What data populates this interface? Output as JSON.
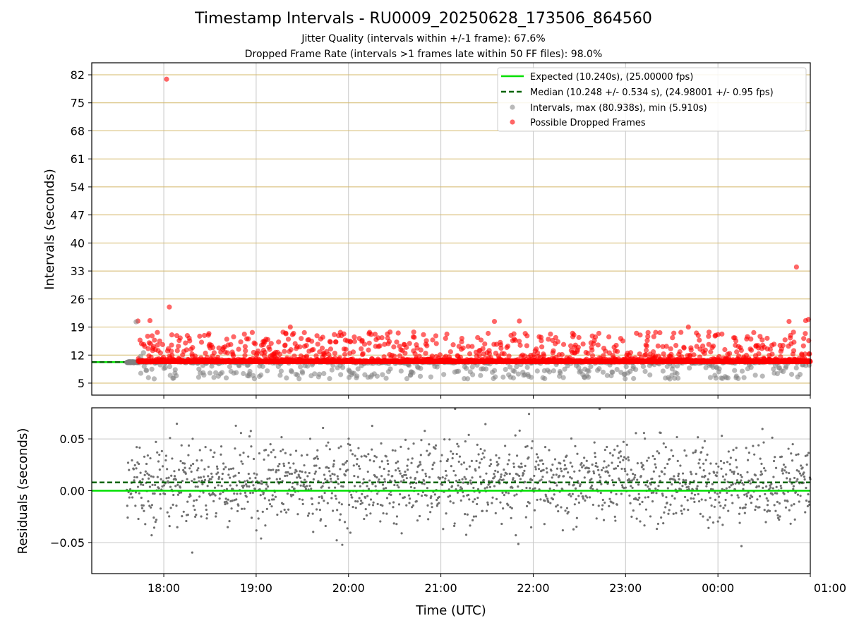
{
  "chart_data": [
    {
      "type": "scatter",
      "title": "Timestamp Intervals - RU0009_20250628_173506_864560",
      "subtitle_lines": [
        "Jitter Quality (intervals within +/-1 frame): 67.6%",
        "Dropped Frame Rate (intervals >1 frames late within 50 FF files): 98.0%"
      ],
      "xlabel": "",
      "ylabel": "Intervals (seconds)",
      "x_range_hours": [
        17.22,
        25.0
      ],
      "ylim": [
        2,
        85
      ],
      "yticks": [
        5,
        12,
        19,
        26,
        33,
        40,
        47,
        54,
        61,
        68,
        75,
        82
      ],
      "ytick_labels": [
        "5",
        "12",
        "19",
        "26",
        "33",
        "40",
        "47",
        "54",
        "61",
        "68",
        "75",
        "82"
      ],
      "grid": true,
      "legend_position": "top-right",
      "legend": [
        "Expected (10.240s), (25.00000 fps)",
        "Median (10.248 +/- 0.534 s), (24.98001 +/- 0.95 fps)",
        "Intervals, max (80.938s), min (5.910s)",
        "Possible Dropped Frames"
      ],
      "expected_interval": 10.24,
      "median_interval": 10.248,
      "series": [
        {
          "name": "Intervals, max (80.938s), min (5.910s)",
          "x_start_hours": 17.6,
          "x_end_hours": 25.0,
          "baseline_seconds": 10.24,
          "max_seconds": 80.938,
          "min_seconds": 5.91
        },
        {
          "name": "Possible Dropped Frames",
          "highlighted_points": [
            {
              "x_hours": 18.03,
              "y": 80.9
            },
            {
              "x_hours": 18.06,
              "y": 24.0
            },
            {
              "x_hours": 17.85,
              "y": 20.6
            },
            {
              "x_hours": 17.72,
              "y": 20.5
            },
            {
              "x_hours": 19.37,
              "y": 19.0
            },
            {
              "x_hours": 21.58,
              "y": 20.4
            },
            {
              "x_hours": 21.85,
              "y": 20.5
            },
            {
              "x_hours": 23.68,
              "y": 19.0
            },
            {
              "x_hours": 24.85,
              "y": 34.0
            },
            {
              "x_hours": 24.77,
              "y": 20.4
            },
            {
              "x_hours": 24.95,
              "y": 20.6
            },
            {
              "x_hours": 24.98,
              "y": 20.9
            }
          ]
        }
      ]
    },
    {
      "type": "scatter",
      "xlabel": "Time (UTC)",
      "ylabel": "Residuals (seconds)",
      "x_range_hours": [
        17.22,
        25.0
      ],
      "ylim": [
        -0.08,
        0.08
      ],
      "yticks": [
        -0.05,
        0.0,
        0.05
      ],
      "ytick_labels": [
        "−0.05",
        "0.00",
        "0.05"
      ],
      "xticks_hours": [
        18,
        19,
        20,
        21,
        22,
        23,
        24,
        25
      ],
      "xtick_labels": [
        "18:00",
        "19:00",
        "20:00",
        "21:00",
        "22:00",
        "23:00",
        "00:00",
        "01:00"
      ],
      "grid": true,
      "expected_residual": 0.0,
      "median_residual": 0.008,
      "series": [
        {
          "name": "",
          "x_start_hours": 17.6,
          "x_end_hours": 25.0,
          "spread_seconds": 0.02
        }
      ]
    }
  ],
  "colors": {
    "expected": "#00e000",
    "median": "#006400",
    "interval": "#808080",
    "dropped": "#ff0000",
    "ygrid_top": "#d4b86a",
    "grid": "#c8c8c8"
  }
}
